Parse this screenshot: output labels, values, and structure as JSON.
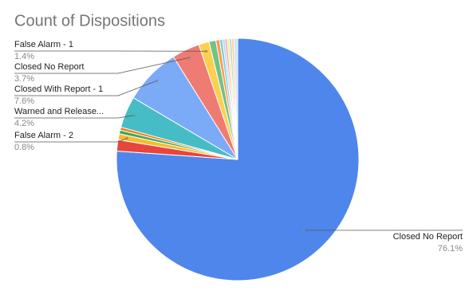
{
  "chart_data": {
    "type": "pie",
    "title": "Count of Dispositions",
    "categories": [
      "Closed No Report",
      null,
      "False Alarm - 2",
      null,
      null,
      "Warned and Release...",
      "Closed With Report - 1",
      "Closed No Report",
      "False Alarm - 1",
      null,
      null,
      null,
      null,
      null,
      null,
      null,
      null,
      null
    ],
    "values": [
      76.1,
      1.5,
      0.8,
      0.5,
      0.4,
      4.2,
      7.6,
      3.7,
      1.4,
      0.9,
      0.5,
      0.4,
      0.3,
      0.3,
      0.3,
      0.3,
      0.3,
      0.5
    ],
    "value_labels": [
      "76.1%",
      null,
      "0.8%",
      null,
      null,
      "4.2%",
      "7.6%",
      "3.7%",
      "1.4%",
      null,
      null,
      null,
      null,
      null,
      null,
      null,
      null,
      null
    ],
    "colors": [
      "#4e86ec",
      "#e8453c",
      "#f9bb2d",
      "#3fa853",
      "#fa7b17",
      "#46bdc6",
      "#7baaf7",
      "#f07b72",
      "#fcd04f",
      "#71c287",
      "#ff994d",
      "#7ed1d7",
      "#b3cefb",
      "#f7a7a0",
      "#fde49b",
      "#aedcba",
      "#ffc599",
      "#d0e4f7"
    ]
  }
}
